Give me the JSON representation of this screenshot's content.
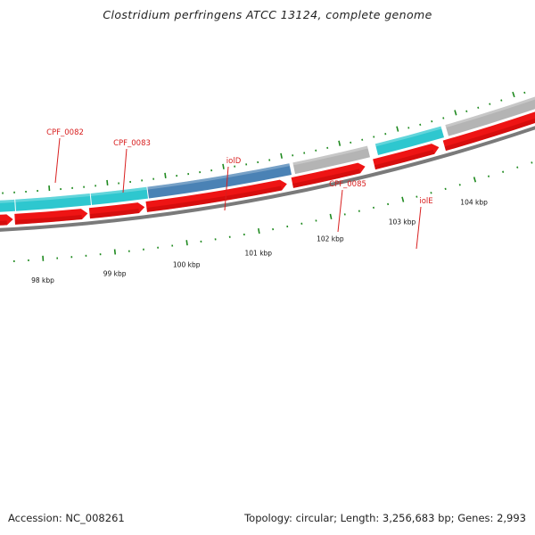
{
  "title": "Clostridium perfringens ATCC 13124, complete genome",
  "footer": {
    "accession": "Accession: NC_008261",
    "summary": "Topology: circular; Length: 3,256,683 bp; Genes: 2,993"
  },
  "colors": {
    "cds_cyan": "#2ec7cf",
    "cds_blue": "#4a82b5",
    "cds_gray": "#b4b4b4",
    "strand_red": "#ee1414",
    "backbone": "#7a7a7a",
    "ticks": "#1f8a1f",
    "gene_label": "#d81e1e"
  },
  "genes": [
    {
      "name": "CPF_0082",
      "type": "cyan"
    },
    {
      "name": "CPF_0083",
      "type": "cyan"
    },
    {
      "name": "iolD",
      "type": "blue"
    },
    {
      "name": "CPF_0085",
      "type": "gray"
    },
    {
      "name": "iolE",
      "type": "cyan"
    }
  ],
  "scale_labels": [
    "98 kbp",
    "99 kbp",
    "100 kbp",
    "101 kbp",
    "102 kbp",
    "103 kbp",
    "104 kbp"
  ]
}
